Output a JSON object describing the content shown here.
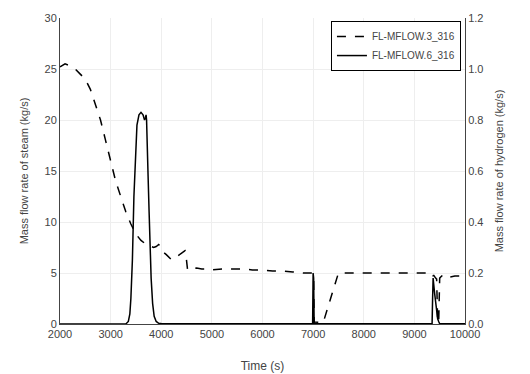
{
  "chart_data": {
    "type": "line",
    "x_label": "Time (s)",
    "y_label": "Mass flow rate of steam (kg/s)",
    "y2_label": "Mass flow rate of hydrogen (kg/s)",
    "xlim": [
      2000,
      10000
    ],
    "ylim": [
      0,
      30
    ],
    "y2lim": [
      0,
      1.2
    ],
    "xticks": [
      2000,
      3000,
      4000,
      5000,
      6000,
      7000,
      8000,
      9000,
      10000
    ],
    "yticks": [
      0,
      5,
      10,
      15,
      20,
      25,
      30
    ],
    "y2ticks": [
      {
        "value": 0,
        "label": "0.0"
      },
      0.2,
      0.4,
      0.6,
      0.8,
      {
        "value": 1,
        "label": "1.0"
      },
      1.2
    ],
    "grid": true,
    "legend": "upper right",
    "background_color": "#ffffff",
    "series": [
      {
        "name": "FL-MFLOW.3_316",
        "color": "#000000",
        "line_style": "dashed",
        "x": [
          2000,
          2100,
          2200,
          2300,
          2400,
          2500,
          2600,
          2700,
          2800,
          2900,
          3000,
          3100,
          3200,
          3300,
          3400,
          3500,
          3600,
          3650,
          3700,
          3750,
          3800,
          3850,
          3900,
          3950,
          4000,
          4050,
          4100,
          4150,
          4200,
          4250,
          4300,
          4400,
          4450,
          4460,
          4470,
          4480,
          4490,
          4500,
          4510,
          4520,
          4600,
          4700,
          4800,
          4900,
          5000,
          5200,
          5400,
          5600,
          5800,
          6000,
          6200,
          6400,
          6600,
          6800,
          6950,
          6960,
          6970,
          6980,
          6990,
          7000,
          7010,
          7020,
          7100,
          7200,
          7500,
          8000,
          8500,
          9000,
          9200,
          9350,
          9360,
          9370,
          9380,
          9390,
          9400,
          9420,
          9440,
          9460,
          9480,
          9500,
          9520,
          9540,
          9560,
          9580,
          9600,
          9700,
          9800,
          10000
        ],
        "values": [
          25.2,
          25.5,
          25.3,
          25.0,
          24.5,
          24.0,
          23.0,
          21.5,
          20.0,
          18.0,
          16.0,
          14.0,
          12.5,
          11.0,
          9.8,
          8.8,
          8.2,
          8.0,
          7.8,
          7.7,
          7.6,
          7.5,
          7.6,
          7.8,
          7.5,
          7.0,
          6.8,
          6.5,
          6.3,
          6.4,
          6.6,
          7.0,
          7.2,
          7.2,
          7.2,
          7.1,
          6.5,
          5.8,
          5.5,
          5.3,
          5.4,
          5.5,
          5.4,
          5.4,
          5.3,
          5.4,
          5.4,
          5.4,
          5.3,
          5.3,
          5.2,
          5.2,
          5.1,
          5.0,
          5.0,
          5.0,
          5.0,
          5.0,
          5.0,
          4.8,
          4.6,
          0.2,
          0.15,
          0.15,
          5.0,
          5.0,
          5.0,
          5.0,
          5.0,
          5.0,
          4.8,
          4.7,
          4.8,
          4.7,
          4.6,
          4.5,
          4.4,
          0.2,
          0.15,
          4.5,
          4.6,
          4.7,
          4.8,
          4.7,
          4.6,
          4.6,
          4.7,
          4.7
        ]
      },
      {
        "name": "FL-MFLOW.6_316",
        "color": "#000000",
        "line_style": "solid",
        "axis": "y2",
        "x": [
          2000,
          3300,
          3350,
          3380,
          3400,
          3430,
          3460,
          3490,
          3520,
          3560,
          3600,
          3640,
          3670,
          3690,
          3700,
          3710,
          3720,
          3730,
          3740,
          3760,
          3780,
          3800,
          3830,
          3860,
          3900,
          3950,
          4000,
          4050,
          4100,
          4200,
          4300,
          4400,
          4450,
          4460,
          4470,
          4490,
          4500,
          4510,
          4520,
          4600,
          4700,
          4800,
          4900,
          5000,
          5500,
          6000,
          6500,
          6950,
          6960,
          6970,
          6980,
          6990,
          7000,
          7010,
          7020,
          7050,
          7100,
          7500,
          8000,
          8500,
          9000,
          9350,
          9360,
          9370,
          9380,
          9400,
          9420,
          9440,
          9460,
          9480,
          9500,
          9520,
          9540,
          9560,
          9580,
          9600,
          9700,
          9800,
          10000
        ],
        "values": [
          0.0,
          0.0,
          0.01,
          0.04,
          0.1,
          0.25,
          0.5,
          0.68,
          0.78,
          0.82,
          0.83,
          0.82,
          0.8,
          0.81,
          0.82,
          0.8,
          0.75,
          0.68,
          0.58,
          0.44,
          0.3,
          0.18,
          0.08,
          0.03,
          0.01,
          0.003,
          0.002,
          0.001,
          0.001,
          0.001,
          0.001,
          0.001,
          0.001,
          0.001,
          0.001,
          0.001,
          0.001,
          0.001,
          0.001,
          0.001,
          0.001,
          0.001,
          0.001,
          0.001,
          0.001,
          0.001,
          0.001,
          0.001,
          0.001,
          0.001,
          0.001,
          0.001,
          0.2,
          0.18,
          0.001,
          0.001,
          0.001,
          0.001,
          0.001,
          0.001,
          0.001,
          0.001,
          0.1,
          0.18,
          0.16,
          0.12,
          0.08,
          0.04,
          0.02,
          0.01,
          0.001,
          0.001,
          0.001,
          0.001,
          0.001,
          0.001,
          0.001,
          0.001,
          0.001
        ]
      }
    ]
  }
}
